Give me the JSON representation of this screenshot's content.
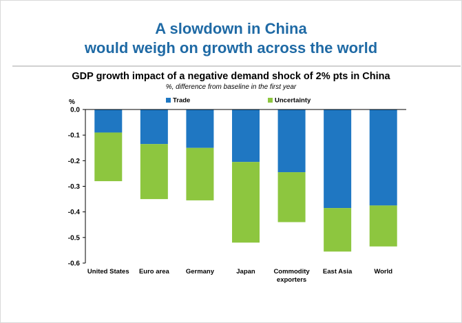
{
  "headline": {
    "line1": "A slowdown in China",
    "line2": "would weigh on growth across the world"
  },
  "colors": {
    "headline": "#1f6aa5",
    "trade": "#1f77c2",
    "uncertainty": "#8dc63f"
  },
  "chart_data": {
    "type": "bar",
    "stacked": true,
    "title": "GDP growth impact of a negative demand shock of 2% pts in China",
    "subtitle": "%, difference from baseline in the first year",
    "ylabel": "%",
    "ylim": [
      -0.6,
      0.0
    ],
    "yticks": [
      {
        "value": 0.0,
        "label": "0.0"
      },
      {
        "value": -0.1,
        "label": "-0.1"
      },
      {
        "value": -0.2,
        "label": "-0.2"
      },
      {
        "value": -0.3,
        "label": "-0.3"
      },
      {
        "value": -0.4,
        "label": "-0.4"
      },
      {
        "value": -0.5,
        "label": "-0.5"
      },
      {
        "value": -0.6,
        "label": "-0.6"
      }
    ],
    "categories": [
      [
        "United States"
      ],
      [
        "Euro area"
      ],
      [
        "Germany"
      ],
      [
        "Japan"
      ],
      [
        "Commodity",
        "exporters"
      ],
      [
        "East Asia"
      ],
      [
        "World"
      ]
    ],
    "series": [
      {
        "name": "Trade",
        "color": "#1f77c2",
        "values": [
          -0.09,
          -0.135,
          -0.15,
          -0.205,
          -0.245,
          -0.385,
          -0.375
        ]
      },
      {
        "name": "Uncertainty",
        "color": "#8dc63f",
        "values": [
          -0.19,
          -0.215,
          -0.205,
          -0.315,
          -0.195,
          -0.17,
          -0.16
        ]
      }
    ],
    "legend_position": "top",
    "grid": false
  }
}
